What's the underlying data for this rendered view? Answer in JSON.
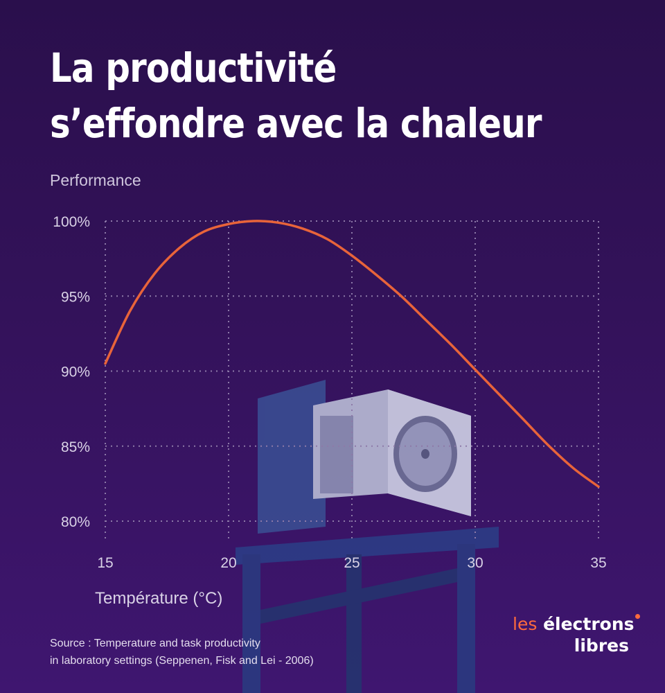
{
  "title_lines": [
    "La productivité",
    "s’effondre avec la chaleur"
  ],
  "colors": {
    "background": "#33125a",
    "curve": "#e8643a",
    "grid": "#8d7aa8",
    "text": "#ffffff",
    "accent": "#ff6a3d"
  },
  "chart_data": {
    "type": "line",
    "title": "La productivité s’effondre avec la chaleur",
    "xlabel": "Température (°C)",
    "ylabel": "Performance",
    "xlim": [
      15,
      35
    ],
    "ylim": [
      80,
      100
    ],
    "x_ticks": [
      15,
      20,
      25,
      30,
      35
    ],
    "y_ticks": [
      "100%",
      "95%",
      "90%",
      "85%",
      "80%"
    ],
    "y_tick_values": [
      100,
      95,
      90,
      85,
      80
    ],
    "grid": true,
    "series": [
      {
        "x": [
          15,
          16,
          17,
          18,
          19,
          20,
          21,
          22,
          23,
          24,
          25,
          26,
          27,
          28,
          29,
          30,
          31,
          32,
          33,
          34,
          35
        ],
        "y": [
          90.5,
          94.0,
          96.5,
          98.2,
          99.3,
          99.8,
          100.0,
          99.9,
          99.5,
          98.8,
          97.7,
          96.4,
          95.0,
          93.4,
          91.8,
          90.1,
          88.4,
          86.7,
          85.0,
          83.5,
          82.3
        ]
      }
    ]
  },
  "source": {
    "line1": "Source : Temperature and task productivity",
    "line2": "in laboratory settings (Seppenen, Fisk and Lei - 2006)"
  },
  "logo": {
    "word1": "les",
    "word2": "électrons",
    "word3": "libres"
  }
}
